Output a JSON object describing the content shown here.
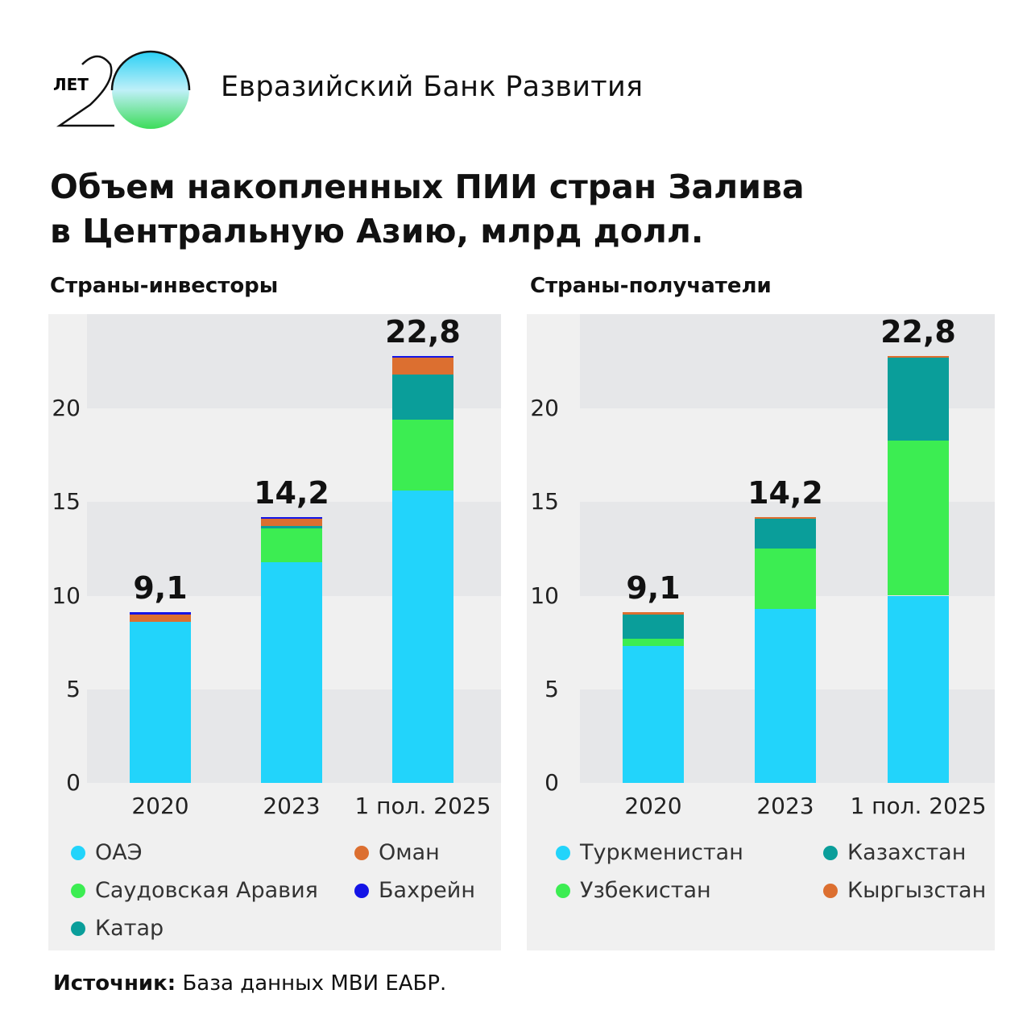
{
  "header": {
    "logo_text": "ЛЕТ 20",
    "bank_name": "Евразийский Банк Развития"
  },
  "title_line1": "Объем накопленных ПИИ стран Залива",
  "title_line2": "в Центральную Азию, млрд долл.",
  "source_label": "Источник:",
  "source_text": " База данных МВИ ЕАБР.",
  "chart_data": [
    {
      "type": "bar",
      "stacked": true,
      "title": "Страны-инвесторы",
      "categories": [
        "2020",
        "2023",
        "1 пол. 2025"
      ],
      "ylim": [
        0,
        25
      ],
      "yticks": [
        0,
        5,
        10,
        15,
        20
      ],
      "totals": [
        "9,1",
        "14,2",
        "22,8"
      ],
      "series": [
        {
          "name": "ОАЭ",
          "color": "#22d4fb",
          "values": [
            8.6,
            11.8,
            15.6
          ]
        },
        {
          "name": "Саудовская Аравия",
          "color": "#3ced52",
          "values": [
            0,
            1.8,
            3.8
          ]
        },
        {
          "name": "Катар",
          "color": "#0a9e9a",
          "values": [
            0,
            0.1,
            2.4
          ]
        },
        {
          "name": "Оман",
          "color": "#dc6f30",
          "values": [
            0.4,
            0.4,
            0.9
          ]
        },
        {
          "name": "Бахрейн",
          "color": "#1414e6",
          "values": [
            0.1,
            0.1,
            0.1
          ]
        }
      ],
      "legend_order": [
        0,
        3,
        1,
        4,
        2
      ]
    },
    {
      "type": "bar",
      "stacked": true,
      "title": "Страны-получатели",
      "categories": [
        "2020",
        "2023",
        "1 пол. 2025"
      ],
      "ylim": [
        0,
        25
      ],
      "yticks": [
        0,
        5,
        10,
        15,
        20
      ],
      "totals": [
        "9,1",
        "14,2",
        "22,8"
      ],
      "series": [
        {
          "name": "Туркменистан",
          "color": "#22d4fb",
          "values": [
            7.3,
            9.3,
            10.0
          ]
        },
        {
          "name": "Узбекистан",
          "color": "#3ced52",
          "values": [
            0.4,
            3.2,
            8.3
          ]
        },
        {
          "name": "Казахстан",
          "color": "#0a9e9a",
          "values": [
            1.3,
            1.6,
            4.4
          ]
        },
        {
          "name": "Кыргызстан",
          "color": "#dc6f30",
          "values": [
            0.1,
            0.1,
            0.1
          ]
        }
      ],
      "legend_order": [
        0,
        2,
        1,
        3
      ]
    }
  ]
}
